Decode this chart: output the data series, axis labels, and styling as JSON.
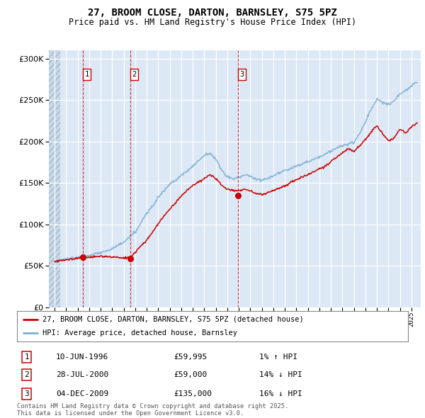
{
  "title": "27, BROOM CLOSE, DARTON, BARNSLEY, S75 5PZ",
  "subtitle": "Price paid vs. HM Land Registry's House Price Index (HPI)",
  "legend_line1": "27, BROOM CLOSE, DARTON, BARNSLEY, S75 5PZ (detached house)",
  "legend_line2": "HPI: Average price, detached house, Barnsley",
  "transaction_labels": [
    "1",
    "2",
    "3"
  ],
  "transaction_dates": [
    "10-JUN-1996",
    "28-JUL-2000",
    "04-DEC-2009"
  ],
  "transaction_prices": [
    "£59,995",
    "£59,000",
    "£135,000"
  ],
  "transaction_hpi": [
    "1% ↑ HPI",
    "14% ↓ HPI",
    "16% ↓ HPI"
  ],
  "transaction_years": [
    1996.44,
    2000.57,
    2009.92
  ],
  "transaction_values": [
    59995,
    59000,
    135000
  ],
  "footer": "Contains HM Land Registry data © Crown copyright and database right 2025.\nThis data is licensed under the Open Government Licence v3.0.",
  "hpi_color": "#7bafd4",
  "price_color": "#cc0000",
  "bg_color": "#dce8f5",
  "ylim": [
    0,
    310000
  ],
  "xlim_start": 1993.5,
  "xlim_end": 2025.8
}
